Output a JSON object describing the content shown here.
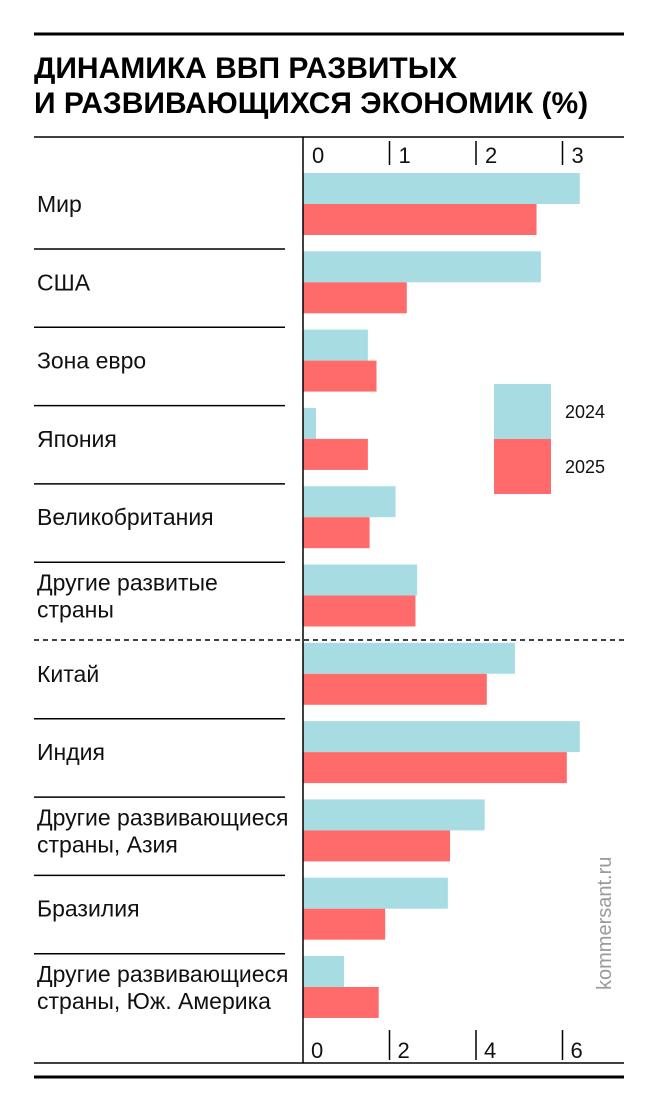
{
  "chart_data": {
    "type": "bar",
    "orientation": "horizontal",
    "title": [
      "ДИНАМИКА ВВП РАЗВИТЫХ",
      "И РАЗВИВАЮЩИХСЯ ЭКОНОМИК (%)"
    ],
    "source": "kommersant.ru",
    "legend": {
      "placement": "right",
      "entries": [
        "2024",
        "2025"
      ]
    },
    "colors": {
      "2024": "#a8dce3",
      "2025": "#ff6b6b"
    },
    "groups": [
      {
        "name": "developed",
        "axis": {
          "ticks": [
            "0",
            "1",
            "2",
            "3"
          ],
          "max": 3,
          "position": "top"
        },
        "categories": [
          {
            "label": [
              "Мир"
            ],
            "values": [
              3.2,
              2.7
            ]
          },
          {
            "label": [
              "США"
            ],
            "values": [
              2.75,
              1.2
            ]
          },
          {
            "label": [
              "Зона евро"
            ],
            "values": [
              0.75,
              0.85
            ]
          },
          {
            "label": [
              "Япония"
            ],
            "values": [
              0.15,
              0.75
            ]
          },
          {
            "label": [
              "Великобритания"
            ],
            "values": [
              1.07,
              0.77
            ]
          },
          {
            "label": [
              "Другие развитые",
              "страны"
            ],
            "values": [
              1.32,
              1.3
            ]
          }
        ]
      },
      {
        "name": "developing",
        "axis": {
          "ticks": [
            "0",
            "2",
            "4",
            "6"
          ],
          "max": 6,
          "position": "bottom"
        },
        "categories": [
          {
            "label": [
              "Китай"
            ],
            "values": [
              4.9,
              4.25
            ]
          },
          {
            "label": [
              "Индия"
            ],
            "values": [
              6.4,
              6.1
            ]
          },
          {
            "label": [
              "Другие развивающиеся",
              "страны, Азия"
            ],
            "values": [
              4.2,
              3.4
            ]
          },
          {
            "label": [
              " Бразилия"
            ],
            "values": [
              3.35,
              1.9
            ]
          },
          {
            "label": [
              "Другие развивающиеся",
              "страны, Юж. Америка"
            ],
            "values": [
              0.95,
              1.75
            ]
          }
        ]
      }
    ]
  }
}
